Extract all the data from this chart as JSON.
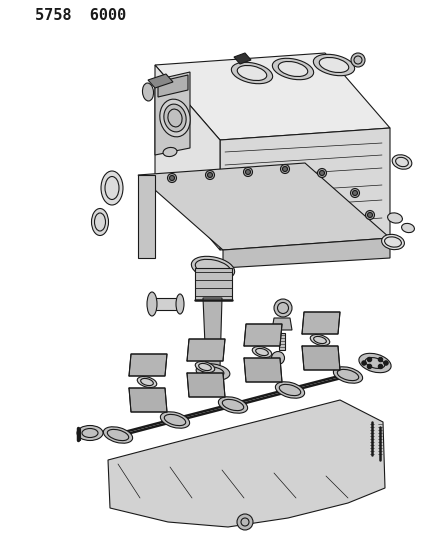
{
  "title_text": "5758  6000",
  "title_fontsize": 11,
  "title_fontweight": "bold",
  "bg_color": "#ffffff",
  "line_color": "#1a1a1a",
  "lw": 0.8,
  "fig_width": 4.28,
  "fig_height": 5.33,
  "dpi": 100
}
